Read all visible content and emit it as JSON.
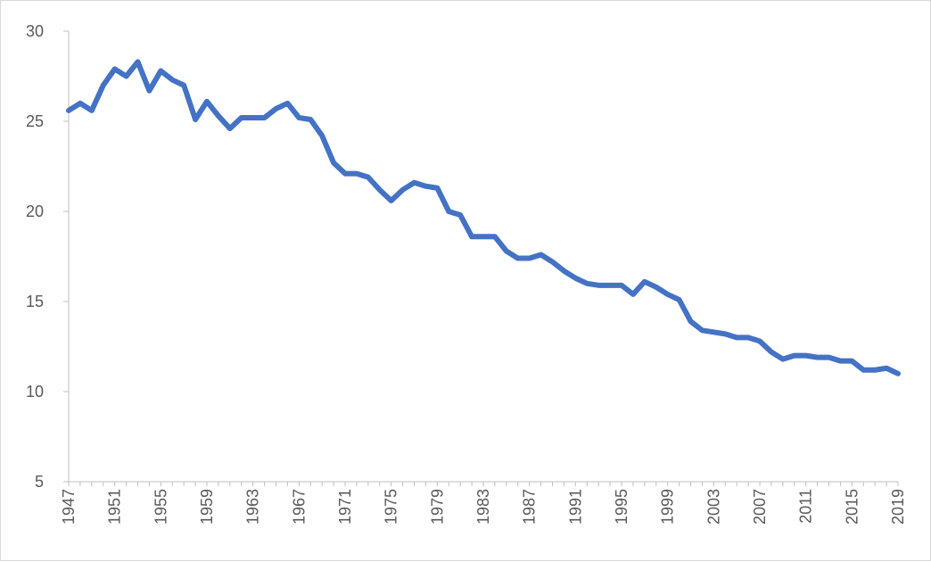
{
  "chart_data": {
    "type": "line",
    "title": "",
    "xlabel": "",
    "ylabel": "",
    "ylim": [
      5,
      30
    ],
    "yticks": [
      5,
      10,
      15,
      20,
      25,
      30
    ],
    "xlim": [
      1947,
      2019
    ],
    "xticks": [
      1947,
      1951,
      1955,
      1959,
      1963,
      1967,
      1971,
      1975,
      1979,
      1983,
      1987,
      1991,
      1995,
      1999,
      2003,
      2007,
      2011,
      2015,
      2019
    ],
    "grid": false,
    "legend": "none",
    "line_color": "#4472C4",
    "x": [
      1947,
      1948,
      1949,
      1950,
      1951,
      1952,
      1953,
      1954,
      1955,
      1956,
      1957,
      1958,
      1959,
      1960,
      1961,
      1962,
      1963,
      1964,
      1965,
      1966,
      1967,
      1968,
      1969,
      1970,
      1971,
      1972,
      1973,
      1974,
      1975,
      1976,
      1977,
      1978,
      1979,
      1980,
      1981,
      1982,
      1983,
      1984,
      1985,
      1986,
      1987,
      1988,
      1989,
      1990,
      1991,
      1992,
      1993,
      1994,
      1995,
      1996,
      1997,
      1998,
      1999,
      2000,
      2001,
      2002,
      2003,
      2004,
      2005,
      2006,
      2007,
      2008,
      2009,
      2010,
      2011,
      2012,
      2013,
      2014,
      2015,
      2016,
      2017,
      2018,
      2019
    ],
    "series": [
      {
        "values": [
          25.6,
          26.0,
          25.6,
          27.0,
          27.9,
          27.5,
          28.3,
          26.7,
          27.8,
          27.3,
          27.0,
          25.1,
          26.1,
          25.3,
          24.6,
          25.2,
          25.2,
          25.2,
          25.7,
          26.0,
          25.2,
          25.1,
          24.2,
          22.7,
          22.1,
          22.1,
          21.9,
          21.2,
          20.6,
          21.2,
          21.6,
          21.4,
          21.3,
          20.0,
          19.8,
          18.6,
          18.6,
          18.6,
          17.8,
          17.4,
          17.4,
          17.6,
          17.2,
          16.7,
          16.3,
          16.0,
          15.9,
          15.9,
          15.9,
          15.4,
          16.1,
          15.8,
          15.4,
          15.1,
          13.9,
          13.4,
          13.3,
          13.2,
          13.0,
          13.0,
          12.8,
          12.2,
          11.8,
          12.0,
          12.0,
          11.9,
          11.9,
          11.7,
          11.7,
          11.2,
          11.2,
          11.3,
          11.0
        ]
      }
    ]
  }
}
